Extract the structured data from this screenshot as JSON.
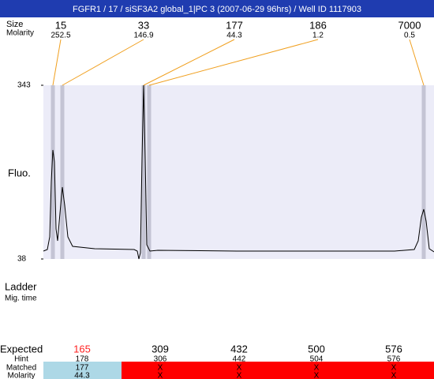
{
  "header": {
    "title": "FGFR1 / 17 / siSF3A2 global_1|PC 3 (2007-06-29 96hrs) / Well ID 1117903"
  },
  "peak_labels": {
    "size": "Size",
    "molarity": "Molarity"
  },
  "peaks": [
    {
      "size": 15,
      "molarity": 252.5
    },
    {
      "size": 33,
      "molarity": 146.9
    },
    {
      "size": 177,
      "molarity": 44.3
    },
    {
      "size": 186,
      "molarity": 1.2
    },
    {
      "size": 7000,
      "molarity": 0.5
    }
  ],
  "chart_data": {
    "type": "line",
    "y_label": "Fluo.",
    "x": [
      0,
      5,
      8,
      10,
      12,
      14,
      16,
      18,
      21,
      24,
      27,
      31,
      37,
      65,
      115,
      119,
      121,
      123,
      125,
      127,
      129,
      131,
      135,
      145,
      245,
      345,
      445,
      470,
      475,
      479,
      482,
      485,
      489,
      495
    ],
    "values": [
      51.9,
      54.6,
      76.8,
      173.8,
      229.3,
      208.5,
      90.7,
      69.9,
      118.4,
      164.1,
      132.2,
      76.8,
      60.2,
      56.0,
      54.6,
      51.9,
      38,
      49.1,
      215.4,
      343,
      215.4,
      63.0,
      51.9,
      53.2,
      51.9,
      51.9,
      51.9,
      54.6,
      69.9,
      111.5,
      125.3,
      104.5,
      56.0,
      50.5
    ],
    "color": "#000000",
    "xlim": [
      0,
      495
    ],
    "ylim": [
      38,
      343
    ],
    "yticks": [
      38,
      343
    ]
  },
  "ladder": {
    "label": "Ladder",
    "sublabel": "Mig. time"
  },
  "table": {
    "row_labels": [
      "Expected",
      "Hint",
      "Matched",
      "Molarity"
    ],
    "columns": [
      {
        "expected": 165,
        "hint": 178,
        "matched": 177,
        "molarity": 44.3
      },
      {
        "expected": 309,
        "hint": 306,
        "matched": "X",
        "molarity": "X"
      },
      {
        "expected": 432,
        "hint": 442,
        "matched": "X",
        "molarity": "X"
      },
      {
        "expected": 500,
        "hint": 504,
        "matched": "X",
        "molarity": "X"
      },
      {
        "expected": 576,
        "hint": 576,
        "matched": "X",
        "molarity": "X"
      }
    ]
  }
}
